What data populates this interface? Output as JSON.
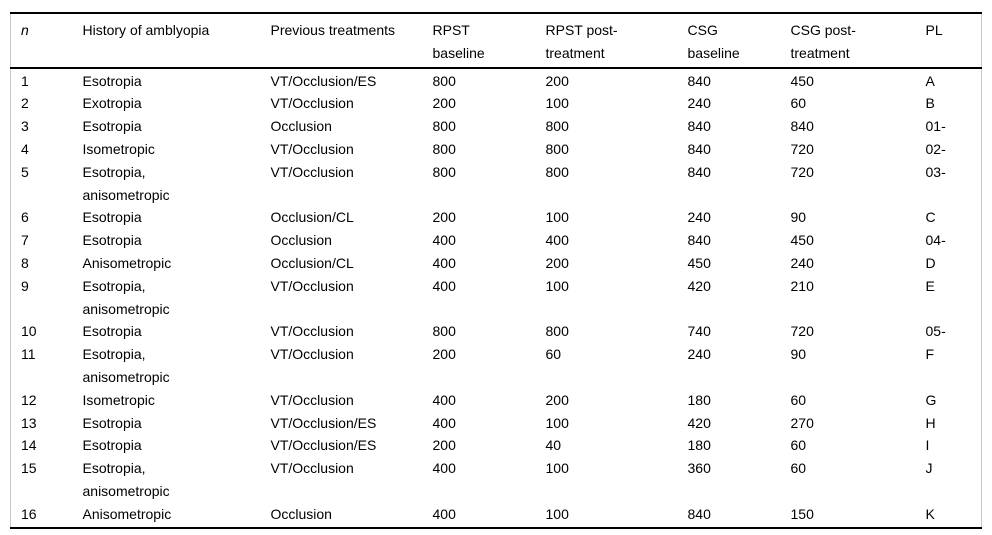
{
  "colors": {
    "background": "#ffffff",
    "text": "#000000",
    "horizontal_rule": "#000000",
    "side_border": "#c9c9c9"
  },
  "table": {
    "columns": [
      {
        "key": "n",
        "label": "n"
      },
      {
        "key": "history_of_amblyopia",
        "label": "History of amblyopia"
      },
      {
        "key": "previous_treatments",
        "label": "Previous treatments"
      },
      {
        "key": "rpst_baseline",
        "label": "RPST\nbaseline"
      },
      {
        "key": "rpst_post_treatment",
        "label": "RPST post-\ntreatment"
      },
      {
        "key": "csg_baseline",
        "label": "CSG\nbaseline"
      },
      {
        "key": "csg_post_treatment",
        "label": "CSG post-\ntreatment"
      },
      {
        "key": "pl",
        "label": "PL"
      }
    ],
    "rows": [
      [
        "1",
        "Esotropia",
        "VT/Occlusion/ES",
        "800",
        "200",
        "840",
        "450",
        "A"
      ],
      [
        "2",
        "Exotropia",
        "VT/Occlusion",
        "200",
        "100",
        "240",
        "60",
        "B"
      ],
      [
        "3",
        "Esotropia",
        "Occlusion",
        "800",
        "800",
        "840",
        "840",
        "01-"
      ],
      [
        "4",
        "Isometropic",
        "VT/Occlusion",
        "800",
        "800",
        "840",
        "720",
        "02-"
      ],
      [
        "5",
        "Esotropia,\nanisometropic",
        "VT/Occlusion",
        "800",
        "800",
        "840",
        "720",
        "03-"
      ],
      [
        "6",
        "Esotropia",
        "Occlusion/CL",
        "200",
        "100",
        "240",
        "90",
        "C"
      ],
      [
        "7",
        "Esotropia",
        "Occlusion",
        "400",
        "400",
        "840",
        "450",
        "04-"
      ],
      [
        "8",
        "Anisometropic",
        "Occlusion/CL",
        "400",
        "200",
        "450",
        "240",
        "D"
      ],
      [
        "9",
        "Esotropia,\nanisometropic",
        "VT/Occlusion",
        "400",
        "100",
        "420",
        "210",
        "E"
      ],
      [
        "10",
        "Esotropia",
        "VT/Occlusion",
        "800",
        "800",
        "740",
        "720",
        "05-"
      ],
      [
        "11",
        "Esotropia,\nanisometropic",
        "VT/Occlusion",
        "200",
        "60",
        "240",
        "90",
        "F"
      ],
      [
        "12",
        "Isometropic",
        "VT/Occlusion",
        "400",
        "200",
        "180",
        "60",
        "G"
      ],
      [
        "13",
        "Esotropia",
        "VT/Occlusion/ES",
        "400",
        "100",
        "420",
        "270",
        "H"
      ],
      [
        "14",
        "Esotropia",
        "VT/Occlusion/ES",
        "200",
        "40",
        "180",
        "60",
        "I"
      ],
      [
        "15",
        "Esotropia,\nanisometropic",
        "VT/Occlusion",
        "400",
        "100",
        "360",
        "60",
        "J"
      ],
      [
        "16",
        "Anisometropic",
        "Occlusion",
        "400",
        "100",
        "840",
        "150",
        "K"
      ]
    ]
  }
}
